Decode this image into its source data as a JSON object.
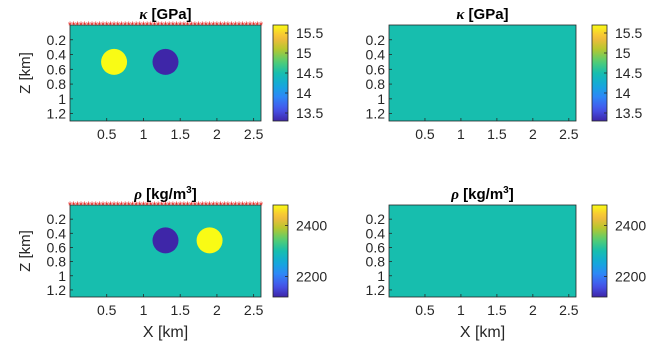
{
  "chart_data": [
    {
      "type": "heatmap",
      "title_symbol": "κ",
      "title_unit": "[GPa]",
      "xlabel": "",
      "ylabel": "Z [km]",
      "x_ticks": [
        "0.5",
        "1",
        "1.5",
        "2",
        "2.5"
      ],
      "y_ticks": [
        "0.2",
        "0.4",
        "0.6",
        "0.8",
        "1",
        "1.2"
      ],
      "xlim": [
        0,
        2.6
      ],
      "ylim": [
        0,
        1.3
      ],
      "background_value": 14.5,
      "anomalies": [
        {
          "x": 0.6,
          "z": 0.5,
          "value": 15.7
        },
        {
          "x": 1.3,
          "z": 0.5,
          "value": 13.3
        }
      ],
      "colorbar": {
        "ticks": [
          "15.5",
          "15",
          "14.5",
          "14",
          "13.5"
        ],
        "tick_values": [
          15.5,
          15,
          14.5,
          14,
          13.5
        ],
        "range": [
          13.3,
          15.7
        ]
      },
      "receivers": true
    },
    {
      "type": "heatmap",
      "title_symbol": "κ",
      "title_unit": "[GPa]",
      "xlabel": "",
      "ylabel": "",
      "x_ticks": [
        "0.5",
        "1",
        "1.5",
        "2",
        "2.5"
      ],
      "y_ticks": [
        "0.2",
        "0.4",
        "0.6",
        "0.8",
        "1",
        "1.2"
      ],
      "xlim": [
        0,
        2.6
      ],
      "ylim": [
        0,
        1.3
      ],
      "background_value": 14.5,
      "anomalies": [],
      "colorbar": {
        "ticks": [
          "15.5",
          "15",
          "14.5",
          "14",
          "13.5"
        ],
        "tick_values": [
          15.5,
          15,
          14.5,
          14,
          13.5
        ],
        "range": [
          13.3,
          15.7
        ]
      },
      "receivers": false
    },
    {
      "type": "heatmap",
      "title_symbol": "ρ",
      "title_unit": "[kg/m",
      "title_sup": "3",
      "title_close": "]",
      "xlabel": "X [km]",
      "ylabel": "Z [km]",
      "x_ticks": [
        "0.5",
        "1",
        "1.5",
        "2",
        "2.5"
      ],
      "y_ticks": [
        "0.2",
        "0.4",
        "0.6",
        "0.8",
        "1",
        "1.2"
      ],
      "xlim": [
        0,
        2.6
      ],
      "ylim": [
        0,
        1.3
      ],
      "background_value": 2300,
      "anomalies": [
        {
          "x": 1.3,
          "z": 0.5,
          "value": 2120
        },
        {
          "x": 1.9,
          "z": 0.5,
          "value": 2480
        }
      ],
      "colorbar": {
        "ticks": [
          "2400",
          "2200"
        ],
        "tick_values": [
          2400,
          2200
        ],
        "range": [
          2120,
          2480
        ]
      },
      "receivers": true
    },
    {
      "type": "heatmap",
      "title_symbol": "ρ",
      "title_unit": "[kg/m",
      "title_sup": "3",
      "title_close": "]",
      "xlabel": "X [km]",
      "ylabel": "",
      "x_ticks": [
        "0.5",
        "1",
        "1.5",
        "2",
        "2.5"
      ],
      "y_ticks": [
        "0.2",
        "0.4",
        "0.6",
        "0.8",
        "1",
        "1.2"
      ],
      "xlim": [
        0,
        2.6
      ],
      "ylim": [
        0,
        1.3
      ],
      "background_value": 2300,
      "anomalies": [],
      "colorbar": {
        "ticks": [
          "2400",
          "2200"
        ],
        "tick_values": [
          2400,
          2200
        ],
        "range": [
          2120,
          2480
        ]
      },
      "receivers": false
    }
  ]
}
